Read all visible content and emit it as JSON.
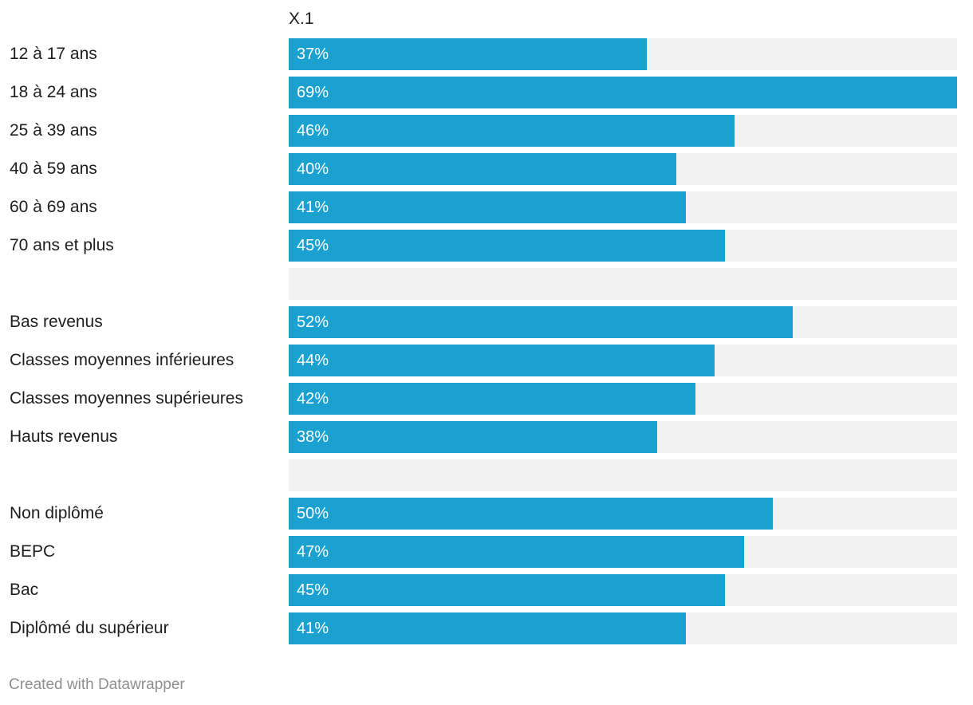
{
  "chart_data": {
    "type": "bar",
    "orientation": "horizontal",
    "series": [
      {
        "name": "X.1",
        "values": [
          37,
          69,
          46,
          40,
          41,
          45,
          null,
          52,
          44,
          42,
          38,
          null,
          50,
          47,
          45,
          41
        ],
        "value_labels": [
          "37%",
          "69%",
          "46%",
          "40%",
          "41%",
          "45%",
          "",
          "52%",
          "44%",
          "42%",
          "38%",
          "",
          "50%",
          "47%",
          "45%",
          "41%"
        ]
      }
    ],
    "categories": [
      "12 à 17 ans",
      "18 à 24 ans",
      "25 à 39 ans",
      "40 à 59 ans",
      "60 à 69 ans",
      "70 ans et plus",
      "",
      "Bas revenus",
      "Classes moyennes inférieures",
      "Classes moyennes supérieures",
      "Hauts revenus",
      "",
      "Non diplômé",
      "BEPC",
      "Bac",
      "Diplômé du supérieur"
    ],
    "xlim": [
      0,
      69
    ],
    "unit": "%",
    "grid": false,
    "bar_color": "#1ba1cf",
    "track_color": "#f2f2f2"
  },
  "footer": {
    "credit": "Created with Datawrapper"
  }
}
